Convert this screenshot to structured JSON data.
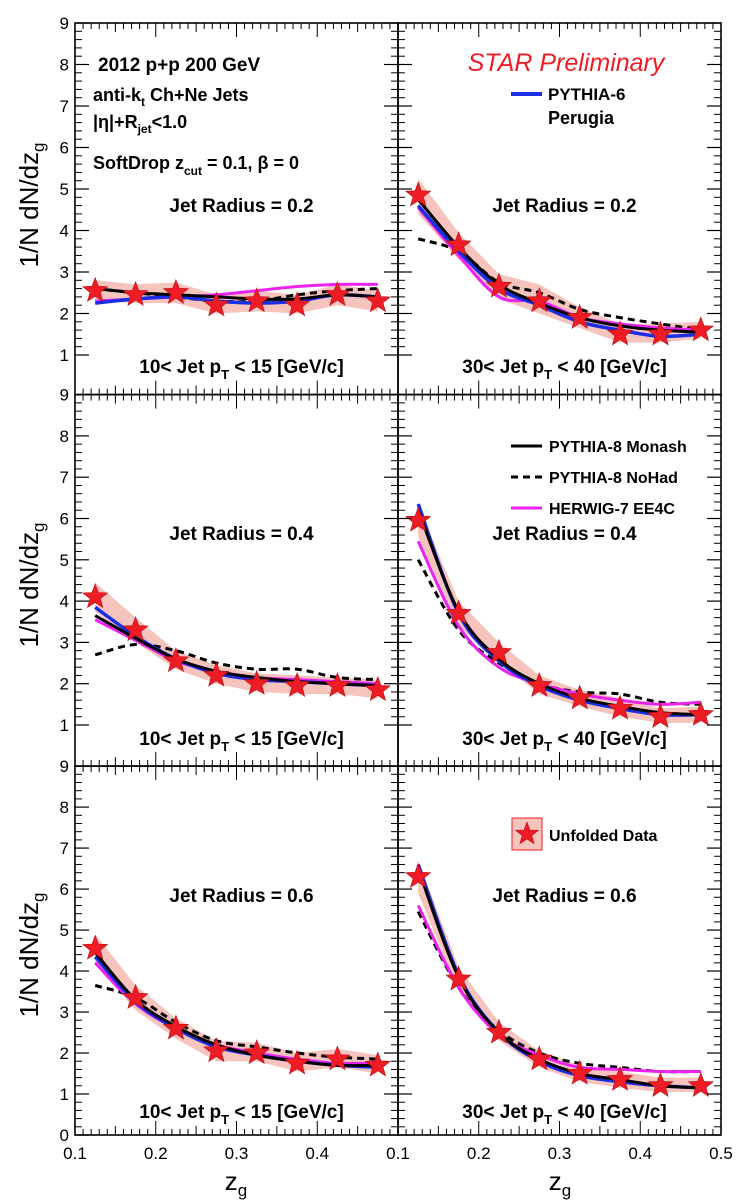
{
  "chart_data": {
    "type": "line",
    "figure": {
      "xlabel_main": "z",
      "xlabel_sub": "g",
      "ylabel_main": "1/N dN/dz",
      "ylabel_sub": "g",
      "xlim": [
        0.1,
        0.5
      ],
      "ylim": [
        0,
        9
      ],
      "x_ticks": [
        "0.1",
        "0.2",
        "0.3",
        "0.4",
        "0.5"
      ],
      "x_ticks_left": [
        "0.1",
        "0.2",
        "0.3",
        "0.4"
      ],
      "y_ticks": [
        "1",
        "2",
        "3",
        "4",
        "5",
        "6",
        "7",
        "8",
        "9"
      ],
      "y_ticks_bottom": [
        "0",
        "1",
        "2",
        "3",
        "4",
        "5",
        "6",
        "7",
        "8",
        "9"
      ],
      "grid": false,
      "star_title": "STAR Preliminary",
      "info_line1": "2012 p+p 200 GeV",
      "info_line2a": "anti-k",
      "info_line2_sub": "t",
      "info_line2b": " Ch+Ne Jets",
      "info_line3a": "|η|+R",
      "info_line3_sub": "jet",
      "info_line3b": "<1.0",
      "info_line4a": "SoftDrop z",
      "info_line4_sub": "cut",
      "info_line4b": " = 0.1,  β = 0",
      "legend_pythia6_line1": "PYTHIA-6",
      "legend_pythia6_line2": "Perugia",
      "legend_monash": "PYTHIA-8 Monash",
      "legend_nohad": "PYTHIA-8 NoHad",
      "legend_herwig": "HERWIG-7 EE4C",
      "legend_data": "Unfolded Data",
      "colors": {
        "data": "#ee1c25",
        "band": "#f7c3bd",
        "pythia6": "#1a2ee6",
        "monash": "#000000",
        "nohad": "#000000",
        "herwig": "#ee22ee"
      }
    },
    "panels": [
      {
        "radius_label": "Jet Radius = 0.2",
        "pt_pre": "10< Jet p",
        "pt_sub": "T",
        "pt_post": " < 15 [GeV/c]",
        "data_x": [
          0.125,
          0.175,
          0.225,
          0.275,
          0.325,
          0.375,
          0.425,
          0.475
        ],
        "data_y": [
          2.55,
          2.45,
          2.5,
          2.2,
          2.3,
          2.2,
          2.45,
          2.3
        ],
        "band_lo": [
          2.3,
          2.25,
          2.25,
          2.0,
          2.05,
          2.0,
          2.2,
          2.05
        ],
        "band_hi": [
          2.8,
          2.7,
          2.75,
          2.45,
          2.55,
          2.45,
          2.7,
          2.55
        ],
        "series": [
          {
            "name": "PYTHIA-6 Perugia",
            "y": [
              2.25,
              2.35,
              2.4,
              2.3,
              2.25,
              2.3,
              2.45,
              2.4
            ]
          },
          {
            "name": "PYTHIA-8 Monash",
            "y": [
              2.6,
              2.5,
              2.45,
              2.4,
              2.35,
              2.35,
              2.45,
              2.4
            ]
          },
          {
            "name": "PYTHIA-8 NoHad",
            "y": [
              2.6,
              2.5,
              2.4,
              2.3,
              2.3,
              2.45,
              2.55,
              2.6
            ]
          },
          {
            "name": "HERWIG-7 EE4C",
            "y": [
              2.3,
              2.35,
              2.4,
              2.45,
              2.55,
              2.65,
              2.7,
              2.7
            ]
          }
        ]
      },
      {
        "radius_label": "Jet Radius = 0.2",
        "pt_pre": "30< Jet p",
        "pt_sub": "T",
        "pt_post": " < 40 [GeV/c]",
        "data_x": [
          0.125,
          0.175,
          0.225,
          0.275,
          0.325,
          0.375,
          0.425,
          0.475
        ],
        "data_y": [
          4.85,
          3.65,
          2.65,
          2.3,
          1.9,
          1.5,
          1.5,
          1.6
        ],
        "band_lo": [
          4.4,
          3.3,
          2.35,
          2.0,
          1.65,
          1.3,
          1.3,
          1.4
        ],
        "band_hi": [
          5.25,
          3.95,
          2.95,
          2.7,
          2.15,
          1.75,
          1.75,
          1.8
        ],
        "series": [
          {
            "name": "PYTHIA-6 Perugia",
            "y": [
              4.6,
              3.5,
              2.6,
              2.2,
              1.8,
              1.6,
              1.45,
              1.5
            ]
          },
          {
            "name": "PYTHIA-8 Monash",
            "y": [
              4.75,
              3.6,
              2.7,
              2.25,
              1.9,
              1.7,
              1.6,
              1.55
            ]
          },
          {
            "name": "PYTHIA-8 NoHad",
            "y": [
              3.8,
              3.5,
              2.75,
              2.5,
              2.1,
              1.9,
              1.75,
              1.6
            ]
          },
          {
            "name": "HERWIG-7 EE4C",
            "y": [
              4.55,
              3.4,
              2.4,
              2.3,
              1.9,
              1.75,
              1.65,
              1.6
            ]
          }
        ]
      },
      {
        "radius_label": "Jet Radius = 0.4",
        "pt_pre": "10< Jet p",
        "pt_sub": "T",
        "pt_post": " < 15 [GeV/c]",
        "data_x": [
          0.125,
          0.175,
          0.225,
          0.275,
          0.325,
          0.375,
          0.425,
          0.475
        ],
        "data_y": [
          4.1,
          3.3,
          2.55,
          2.2,
          2.0,
          1.95,
          1.95,
          1.85
        ],
        "band_lo": [
          3.75,
          3.0,
          2.35,
          2.0,
          1.8,
          1.75,
          1.75,
          1.65
        ],
        "band_hi": [
          4.45,
          3.6,
          2.8,
          2.45,
          2.25,
          2.2,
          2.15,
          2.1
        ],
        "series": [
          {
            "name": "PYTHIA-6 Perugia",
            "y": [
              3.85,
              3.15,
              2.6,
              2.25,
              2.1,
              2.05,
              2.0,
              1.95
            ]
          },
          {
            "name": "PYTHIA-8 Monash",
            "y": [
              3.65,
              3.1,
              2.6,
              2.3,
              2.15,
              2.05,
              2.0,
              1.95
            ]
          },
          {
            "name": "PYTHIA-8 NoHad",
            "y": [
              2.7,
              2.95,
              2.8,
              2.5,
              2.35,
              2.35,
              2.15,
              2.1
            ]
          },
          {
            "name": "HERWIG-7 EE4C",
            "y": [
              3.55,
              3.05,
              2.55,
              2.3,
              2.15,
              2.1,
              2.05,
              2.0
            ]
          }
        ]
      },
      {
        "radius_label": "Jet Radius = 0.4",
        "pt_pre": "30< Jet p",
        "pt_sub": "T",
        "pt_post": " < 40 [GeV/c]",
        "data_x": [
          0.125,
          0.175,
          0.225,
          0.275,
          0.325,
          0.375,
          0.425,
          0.475
        ],
        "data_y": [
          5.95,
          3.7,
          2.75,
          1.95,
          1.65,
          1.4,
          1.2,
          1.25
        ],
        "band_lo": [
          5.55,
          3.4,
          2.5,
          1.75,
          1.45,
          1.2,
          1.05,
          1.05
        ],
        "band_hi": [
          6.3,
          4.0,
          3.0,
          2.2,
          1.85,
          1.65,
          1.4,
          1.45
        ],
        "series": [
          {
            "name": "PYTHIA-6 Perugia",
            "y": [
              6.35,
              3.7,
              2.55,
              1.95,
              1.6,
              1.4,
              1.25,
              1.25
            ]
          },
          {
            "name": "PYTHIA-8 Monash",
            "y": [
              6.2,
              3.75,
              2.6,
              2.0,
              1.65,
              1.45,
              1.3,
              1.25
            ]
          },
          {
            "name": "PYTHIA-8 NoHad",
            "y": [
              5.0,
              3.3,
              2.5,
              2.0,
              1.8,
              1.75,
              1.55,
              1.5
            ]
          },
          {
            "name": "HERWIG-7 EE4C",
            "y": [
              5.45,
              3.4,
              2.4,
              2.0,
              1.75,
              1.6,
              1.5,
              1.55
            ]
          }
        ]
      },
      {
        "radius_label": "Jet Radius = 0.6",
        "pt_pre": "10< Jet p",
        "pt_sub": "T",
        "pt_post": " < 15 [GeV/c]",
        "data_x": [
          0.125,
          0.175,
          0.225,
          0.275,
          0.325,
          0.375,
          0.425,
          0.475
        ],
        "data_y": [
          4.55,
          3.35,
          2.6,
          2.05,
          2.0,
          1.75,
          1.85,
          1.7
        ],
        "band_lo": [
          4.15,
          3.05,
          2.35,
          1.8,
          1.8,
          1.55,
          1.65,
          1.5
        ],
        "band_hi": [
          4.9,
          3.65,
          2.85,
          2.3,
          2.25,
          2.0,
          2.1,
          1.95
        ],
        "series": [
          {
            "name": "PYTHIA-6 Perugia",
            "y": [
              4.35,
              3.25,
              2.6,
              2.15,
              1.95,
              1.8,
              1.7,
              1.65
            ]
          },
          {
            "name": "PYTHIA-8 Monash",
            "y": [
              4.45,
              3.3,
              2.65,
              2.2,
              1.95,
              1.8,
              1.7,
              1.7
            ]
          },
          {
            "name": "PYTHIA-8 NoHad",
            "y": [
              3.65,
              3.35,
              2.75,
              2.3,
              2.15,
              2.0,
              1.9,
              1.85
            ]
          },
          {
            "name": "HERWIG-7 EE4C",
            "y": [
              4.2,
              3.2,
              2.6,
              2.2,
              2.0,
              1.85,
              1.75,
              1.75
            ]
          }
        ]
      },
      {
        "radius_label": "Jet Radius = 0.6",
        "pt_pre": "30< Jet p",
        "pt_sub": "T",
        "pt_post": " < 40 [GeV/c]",
        "data_x": [
          0.125,
          0.175,
          0.225,
          0.275,
          0.325,
          0.375,
          0.425,
          0.475
        ],
        "data_y": [
          6.3,
          3.8,
          2.5,
          1.85,
          1.5,
          1.35,
          1.2,
          1.2
        ],
        "band_lo": [
          5.9,
          3.5,
          2.3,
          1.65,
          1.3,
          1.15,
          1.05,
          1.05
        ],
        "band_hi": [
          6.7,
          4.1,
          2.75,
          2.05,
          1.7,
          1.55,
          1.4,
          1.4
        ],
        "series": [
          {
            "name": "PYTHIA-6 Perugia",
            "y": [
              6.6,
              3.9,
              2.5,
              1.8,
              1.45,
              1.3,
              1.2,
              1.15
            ]
          },
          {
            "name": "PYTHIA-8 Monash",
            "y": [
              6.5,
              3.85,
              2.5,
              1.85,
              1.5,
              1.35,
              1.2,
              1.15
            ]
          },
          {
            "name": "PYTHIA-8 NoHad",
            "y": [
              5.45,
              3.6,
              2.55,
              2.0,
              1.75,
              1.65,
              1.55,
              1.55
            ]
          },
          {
            "name": "HERWIG-7 EE4C",
            "y": [
              5.6,
              3.6,
              2.45,
              1.95,
              1.65,
              1.6,
              1.55,
              1.55
            ]
          }
        ]
      }
    ]
  }
}
